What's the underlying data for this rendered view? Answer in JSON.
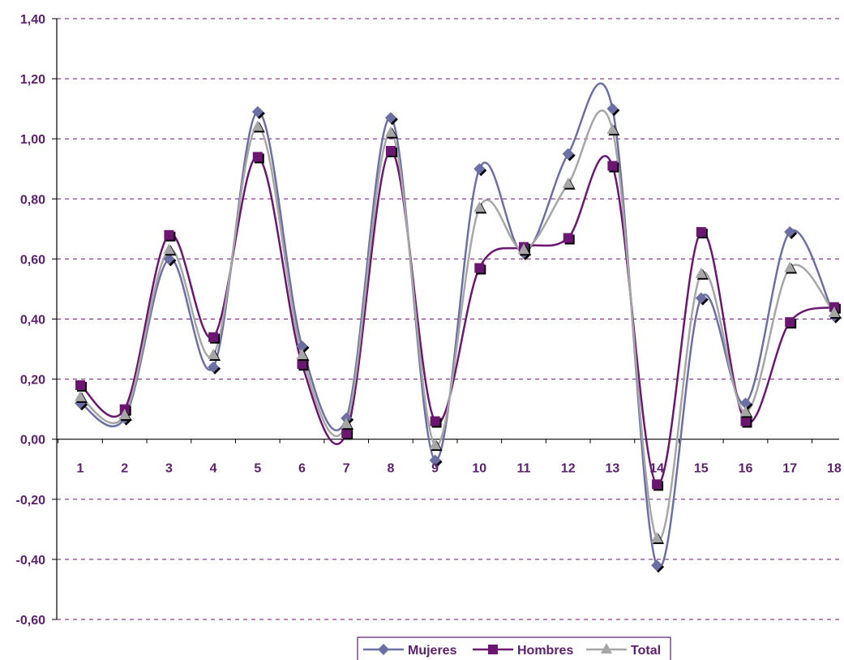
{
  "chart_data": {
    "type": "line",
    "title": "",
    "xlabel": "",
    "ylabel": "",
    "categories": [
      "1",
      "2",
      "3",
      "4",
      "5",
      "6",
      "7",
      "8",
      "9",
      "10",
      "11",
      "12",
      "13",
      "14",
      "15",
      "16",
      "17",
      "18"
    ],
    "ylim": [
      -0.6,
      1.4
    ],
    "y_ticks": [
      "1,40",
      "1,20",
      "1,00",
      "0,80",
      "0,60",
      "0,40",
      "0,20",
      "0,00",
      "-0,20",
      "-0,40",
      "-0,60"
    ],
    "grid": true,
    "smooth": true,
    "legend_position": "bottom",
    "series": [
      {
        "name": "Mujeres",
        "color": "#6b6fa3",
        "marker": "diamond",
        "values": [
          0.12,
          0.07,
          0.6,
          0.24,
          1.09,
          0.31,
          0.07,
          1.07,
          -0.07,
          0.9,
          0.62,
          0.95,
          1.1,
          -0.42,
          0.47,
          0.12,
          0.69,
          0.41
        ]
      },
      {
        "name": "Hombres",
        "color": "#6b1670",
        "marker": "square",
        "values": [
          0.18,
          0.1,
          0.68,
          0.34,
          0.94,
          0.25,
          0.02,
          0.96,
          0.06,
          0.57,
          0.64,
          0.67,
          0.91,
          -0.15,
          0.69,
          0.06,
          0.39,
          0.44
        ]
      },
      {
        "name": "Total",
        "color": "#a6a6a6",
        "marker": "triangle",
        "values": [
          0.14,
          0.08,
          0.63,
          0.28,
          1.04,
          0.28,
          0.05,
          1.02,
          -0.02,
          0.77,
          0.63,
          0.85,
          1.03,
          -0.33,
          0.55,
          0.09,
          0.57,
          0.42
        ]
      }
    ]
  }
}
